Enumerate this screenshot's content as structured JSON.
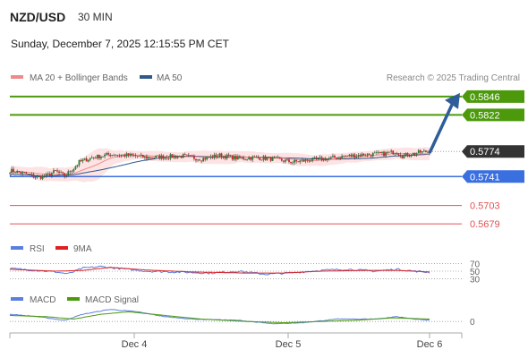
{
  "header": {
    "symbol": "NZD/USD",
    "interval": "30 MIN",
    "datetime": "Sunday, December 7, 2025 12:15:55 PM CET"
  },
  "legend": {
    "ma20": "MA 20 + Bollinger Bands",
    "ma50": "MA 50",
    "credit": "Research © 2025 Trading Central",
    "rsi": "RSI",
    "rsi_ma": "9MA",
    "macd": "MACD",
    "macd_signal": "MACD Signal"
  },
  "colors": {
    "target": "#4c9a0c",
    "pivot": "#3a6fe0",
    "support": "#e05454",
    "current": "#333333",
    "ma20": "#f08a8a",
    "ma50": "#2f5a8a",
    "band_fill": "#fde3e3",
    "arrow": "#2e5d9a",
    "rsi": "#5b7fe0",
    "rsi_ma": "#e02020",
    "macd": "#5b7fe0",
    "macd_signal": "#4c9a0c",
    "candle_up": "#2f7d32",
    "candle_down": "#c62828"
  },
  "chart_data": {
    "type": "candlestick",
    "x_tick_labels": [
      "Dec 4",
      "Dec 5",
      "Dec 6"
    ],
    "ylim": [
      0.5665,
      0.586
    ],
    "levels": [
      {
        "name": "target-2",
        "value": 0.5846,
        "label": "0.5846",
        "kind": "target"
      },
      {
        "name": "target-1",
        "value": 0.5822,
        "label": "0.5822",
        "kind": "target"
      },
      {
        "name": "current-price",
        "value": 0.5774,
        "label": "0.5774",
        "kind": "current"
      },
      {
        "name": "pivot",
        "value": 0.5741,
        "label": "0.5741",
        "kind": "pivot"
      },
      {
        "name": "support-1",
        "value": 0.5703,
        "label": "0.5703",
        "kind": "support"
      },
      {
        "name": "support-2",
        "value": 0.5679,
        "label": "0.5679",
        "kind": "support"
      }
    ],
    "price_anchors": [
      [
        0,
        0.5749
      ],
      [
        8,
        0.5745
      ],
      [
        15,
        0.574
      ],
      [
        20,
        0.5742
      ],
      [
        25,
        0.5748
      ],
      [
        30,
        0.5742
      ],
      [
        35,
        0.5752
      ],
      [
        38,
        0.576
      ],
      [
        45,
        0.5766
      ],
      [
        55,
        0.577
      ],
      [
        65,
        0.5769
      ],
      [
        75,
        0.5766
      ],
      [
        85,
        0.5767
      ],
      [
        95,
        0.5768
      ],
      [
        105,
        0.5764
      ],
      [
        115,
        0.5769
      ],
      [
        125,
        0.5765
      ],
      [
        135,
        0.5766
      ],
      [
        145,
        0.5764
      ],
      [
        155,
        0.576
      ],
      [
        165,
        0.5763
      ],
      [
        175,
        0.5765
      ],
      [
        185,
        0.5768
      ],
      [
        195,
        0.577
      ],
      [
        205,
        0.5771
      ],
      [
        212,
        0.5774
      ],
      [
        215,
        0.5768
      ],
      [
        225,
        0.5773
      ],
      [
        230,
        0.5774
      ]
    ],
    "forecast_arrow": {
      "from": 0.5772,
      "to": 0.5846
    },
    "rsi": {
      "levels": [
        {
          "value": 70,
          "label": "70"
        },
        {
          "value": 50,
          "label": "50"
        },
        {
          "value": 30,
          "label": "30"
        }
      ],
      "ylim": [
        15,
        85
      ],
      "rsi_anchors": [
        [
          0,
          57
        ],
        [
          15,
          52
        ],
        [
          25,
          48
        ],
        [
          32,
          43
        ],
        [
          40,
          58
        ],
        [
          50,
          62
        ],
        [
          60,
          57
        ],
        [
          75,
          50
        ],
        [
          90,
          48
        ],
        [
          110,
          45
        ],
        [
          125,
          50
        ],
        [
          140,
          42
        ],
        [
          155,
          46
        ],
        [
          170,
          52
        ],
        [
          185,
          55
        ],
        [
          200,
          50
        ],
        [
          212,
          55
        ],
        [
          222,
          50
        ],
        [
          230,
          47
        ]
      ],
      "ma_anchors": [
        [
          0,
          55
        ],
        [
          25,
          50
        ],
        [
          40,
          52
        ],
        [
          55,
          60
        ],
        [
          75,
          53
        ],
        [
          100,
          48
        ],
        [
          130,
          45
        ],
        [
          150,
          45
        ],
        [
          170,
          50
        ],
        [
          195,
          52
        ],
        [
          212,
          52
        ],
        [
          230,
          48
        ]
      ]
    },
    "macd": {
      "zero_label": "0",
      "ylim": [
        -0.0008,
        0.0012
      ],
      "macd_anchors": [
        [
          0,
          0.0006
        ],
        [
          15,
          0.0004
        ],
        [
          30,
          0.0001
        ],
        [
          40,
          0.0006
        ],
        [
          55,
          0.001
        ],
        [
          70,
          0.0008
        ],
        [
          85,
          0.0004
        ],
        [
          100,
          0.0002
        ],
        [
          125,
          0.0001
        ],
        [
          145,
          -0.0002
        ],
        [
          160,
          -0.0001
        ],
        [
          180,
          0.0002
        ],
        [
          200,
          0.0002
        ],
        [
          212,
          0.0004
        ],
        [
          222,
          0.0002
        ],
        [
          230,
          0.0001
        ]
      ],
      "signal_anchors": [
        [
          0,
          0.0005
        ],
        [
          20,
          0.0004
        ],
        [
          35,
          0.0002
        ],
        [
          50,
          0.0006
        ],
        [
          65,
          0.0008
        ],
        [
          85,
          0.0005
        ],
        [
          105,
          0.0002
        ],
        [
          130,
          0.0
        ],
        [
          150,
          -0.0001
        ],
        [
          170,
          0.0
        ],
        [
          190,
          0.0001
        ],
        [
          210,
          0.0003
        ],
        [
          230,
          0.0002
        ]
      ]
    }
  }
}
